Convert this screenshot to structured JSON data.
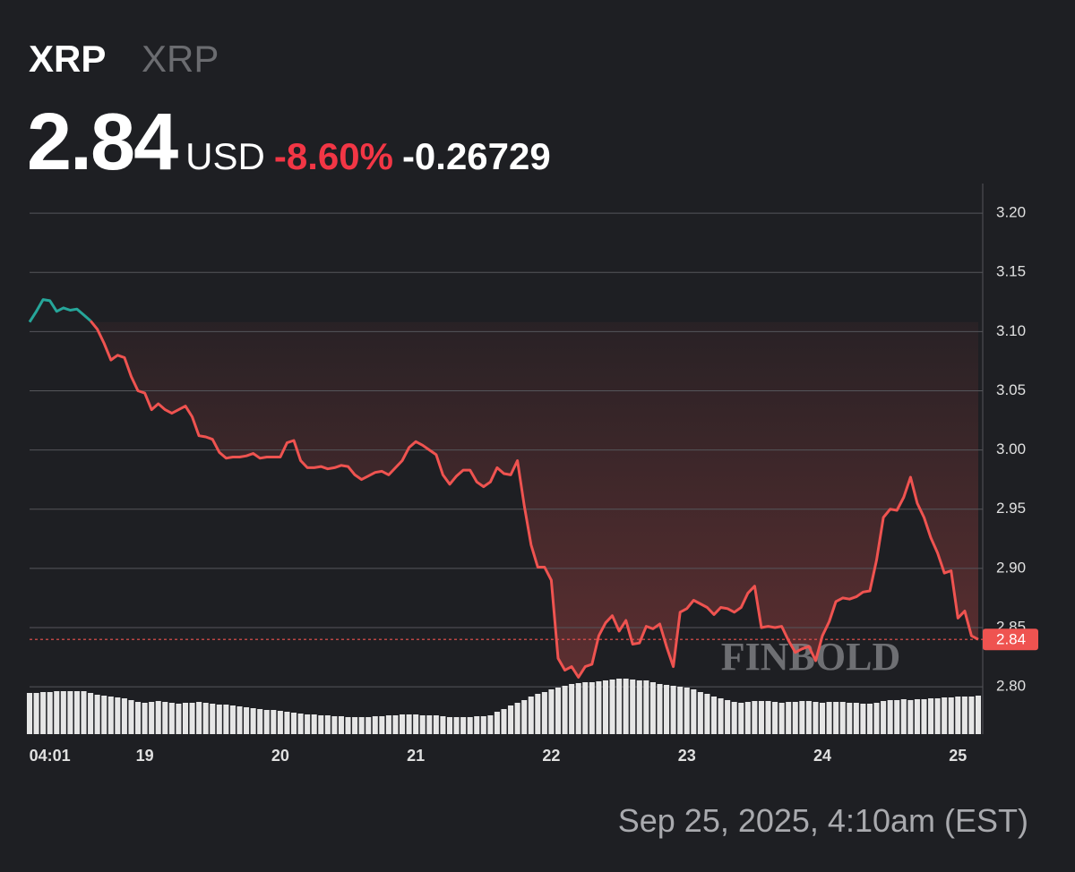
{
  "header": {
    "symbol": "XRP",
    "name": "XRP",
    "price": "2.84",
    "currency": "USD",
    "change_pct": "-8.60%",
    "change_abs": "-0.26729"
  },
  "footer": "Sep 25, 2025, 4:10am (EST)",
  "watermark": "FINBOLD",
  "chart_data": {
    "type": "line",
    "categories": [
      null,
      null,
      null,
      "04:01",
      null,
      null,
      null,
      null,
      null,
      null,
      null,
      null,
      null,
      null,
      null,
      null,
      null,
      "19",
      null,
      null,
      null,
      null,
      null,
      null,
      null,
      null,
      null,
      null,
      null,
      null,
      null,
      null,
      null,
      null,
      null,
      null,
      null,
      "20",
      null,
      null,
      null,
      null,
      null,
      null,
      null,
      null,
      null,
      null,
      null,
      null,
      null,
      null,
      null,
      null,
      null,
      null,
      null,
      "21",
      null,
      null,
      null,
      null,
      null,
      null,
      null,
      null,
      null,
      null,
      null,
      null,
      null,
      null,
      null,
      null,
      null,
      null,
      null,
      "22",
      null,
      null,
      null,
      null,
      null,
      null,
      null,
      null,
      null,
      null,
      null,
      null,
      null,
      null,
      null,
      null,
      null,
      null,
      null,
      "23",
      null,
      null,
      null,
      null,
      null,
      null,
      null,
      null,
      null,
      null,
      null,
      null,
      null,
      null,
      null,
      null,
      null,
      null,
      null,
      "24",
      null,
      null,
      null,
      null,
      null,
      null,
      null,
      null,
      null,
      null,
      null,
      null,
      null,
      null,
      null,
      null,
      null,
      null,
      null,
      "25",
      null,
      null,
      null
    ],
    "series": [
      {
        "color": "#26a69a",
        "values": [
          3.108,
          3.117,
          3.127,
          3.126,
          3.117,
          3.12,
          3.118,
          3.119,
          3.114,
          3.109,
          null,
          null,
          null,
          null,
          null,
          null,
          null,
          null,
          null,
          null,
          null,
          null,
          null,
          null,
          null,
          null,
          null,
          null,
          null,
          null,
          null,
          null,
          null,
          null,
          null,
          null,
          null,
          null,
          null,
          null,
          null,
          null,
          null,
          null,
          null,
          null,
          null,
          null,
          null,
          null,
          null,
          null,
          null,
          null,
          null,
          null,
          null,
          null,
          null,
          null,
          null,
          null,
          null,
          null,
          null,
          null,
          null,
          null,
          null,
          null,
          null,
          null,
          null,
          null,
          null,
          null,
          null,
          null,
          null,
          null,
          null,
          null,
          null,
          null,
          null,
          null,
          null,
          null,
          null,
          null,
          null,
          null,
          null,
          null,
          null,
          null,
          null,
          null,
          null,
          null,
          null,
          null,
          null,
          null,
          null,
          null,
          null,
          null,
          null,
          null,
          null,
          null,
          null,
          null,
          null,
          null,
          null,
          null,
          null,
          null,
          null,
          null,
          null,
          null,
          null,
          null,
          null,
          null,
          null,
          null,
          null,
          null,
          null,
          null,
          null,
          null,
          null,
          null,
          null,
          null,
          null
        ]
      },
      {
        "color": "#ef5350",
        "values": [
          null,
          null,
          null,
          null,
          null,
          null,
          null,
          null,
          null,
          3.109,
          3.102,
          3.09,
          3.076,
          3.08,
          3.078,
          3.062,
          3.05,
          3.048,
          3.034,
          3.039,
          3.034,
          3.031,
          3.034,
          3.037,
          3.028,
          3.012,
          3.011,
          3.009,
          2.998,
          2.993,
          2.994,
          2.994,
          2.995,
          2.997,
          2.993,
          2.994,
          2.994,
          2.994,
          3.006,
          3.008,
          2.991,
          2.985,
          2.985,
          2.986,
          2.984,
          2.985,
          2.987,
          2.986,
          2.979,
          2.975,
          2.978,
          2.981,
          2.982,
          2.979,
          2.985,
          2.991,
          3.002,
          3.007,
          3.004,
          3.0,
          2.996,
          2.979,
          2.971,
          2.978,
          2.983,
          2.983,
          2.973,
          2.969,
          2.973,
          2.985,
          2.98,
          2.979,
          2.991,
          2.953,
          2.92,
          2.901,
          2.901,
          2.89,
          2.824,
          2.814,
          2.817,
          2.808,
          2.817,
          2.819,
          2.843,
          2.854,
          2.86,
          2.847,
          2.856,
          2.836,
          2.837,
          2.851,
          2.849,
          2.853,
          2.834,
          2.817,
          2.863,
          2.866,
          2.873,
          2.87,
          2.867,
          2.861,
          2.867,
          2.866,
          2.863,
          2.867,
          2.879,
          2.885,
          2.85,
          2.851,
          2.85,
          2.851,
          2.839,
          2.829,
          2.832,
          2.834,
          2.822,
          2.843,
          2.855,
          2.872,
          2.875,
          2.874,
          2.876,
          2.88,
          2.881,
          2.907,
          2.943,
          2.95,
          2.949,
          2.96,
          2.977,
          2.955,
          2.943,
          2.926,
          2.913,
          2.896,
          2.898,
          2.858,
          2.864,
          2.843,
          2.84
        ]
      }
    ],
    "volume": [
      46,
      46,
      47,
      47,
      48,
      48,
      48,
      48,
      48,
      46,
      44,
      43,
      42,
      41,
      40,
      38,
      36,
      35,
      36,
      37,
      36,
      35,
      34,
      35,
      35,
      36,
      35,
      34,
      33,
      33,
      32,
      31,
      30,
      29,
      28,
      27,
      27,
      26,
      25,
      24,
      23,
      22,
      22,
      21,
      21,
      20,
      20,
      19,
      19,
      19,
      19,
      20,
      20,
      21,
      21,
      22,
      22,
      22,
      21,
      21,
      21,
      20,
      19,
      19,
      19,
      19,
      20,
      20,
      21,
      25,
      28,
      32,
      35,
      38,
      42,
      45,
      47,
      50,
      52,
      54,
      56,
      57,
      58,
      58,
      59,
      60,
      61,
      62,
      62,
      61,
      60,
      60,
      58,
      56,
      55,
      54,
      53,
      52,
      50,
      47,
      45,
      42,
      40,
      38,
      36,
      35,
      36,
      37,
      37,
      37,
      36,
      35,
      36,
      36,
      37,
      37,
      36,
      35,
      36,
      36,
      36,
      35,
      35,
      34,
      34,
      35,
      37,
      38,
      38,
      39,
      38,
      39,
      39,
      40,
      40,
      41,
      41,
      42,
      42,
      42,
      43
    ],
    "volume_color": "#e6e6e6",
    "ylim": [
      2.76,
      3.225
    ],
    "yticks": [
      {
        "value": 2.8,
        "label": "2.80"
      },
      2.85,
      {
        "value": 2.9,
        "label": "2.90"
      },
      2.95,
      {
        "value": 3.0,
        "label": "3.00"
      },
      3.05,
      {
        "value": 3.1,
        "label": "3.10"
      },
      3.15,
      {
        "value": 3.2,
        "label": "3.20"
      }
    ],
    "grid": true,
    "price_line": {
      "value": 2.84,
      "label": "2.84",
      "color": "#ef5350"
    }
  }
}
